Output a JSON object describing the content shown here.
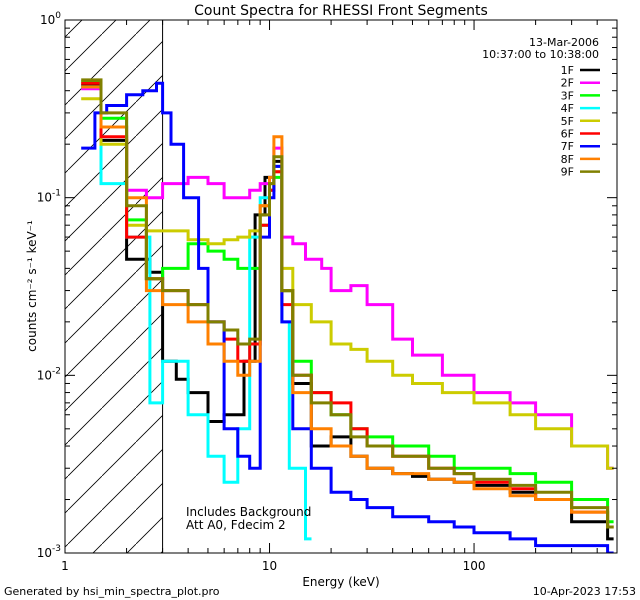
{
  "chart_data": {
    "type": "line",
    "title": "Count Spectra for RHESSI Front Segments",
    "xlabel": "Energy (keV)",
    "ylabel": "counts cm⁻² s⁻¹ keV⁻¹",
    "xscale": "log",
    "yscale": "log",
    "xlim": [
      1,
      500
    ],
    "ylim": [
      0.001,
      1
    ],
    "x_ticks": [
      {
        "value": 1,
        "label": "1"
      },
      {
        "value": 10,
        "label": "10"
      },
      {
        "value": 100,
        "label": "100"
      }
    ],
    "y_ticks": [
      {
        "value": 1,
        "base": "10",
        "exp": "0"
      },
      {
        "value": 0.1,
        "base": "10",
        "exp": "-1"
      },
      {
        "value": 0.01,
        "base": "10",
        "exp": "-2"
      },
      {
        "value": 0.001,
        "base": "10",
        "exp": "-3"
      }
    ],
    "date": "13-Mar-2006",
    "time_range": "10:37:00 to 10:38:00",
    "annotations": [
      "Includes Background",
      "Att A0, Fdecim 2"
    ],
    "hatched_region_below_keV": 3,
    "legend_position": "top-right",
    "series": [
      {
        "name": "1F",
        "color": "#000000",
        "x": [
          1.2,
          1.5,
          2.0,
          2.6,
          3.0,
          3.5,
          4.0,
          5.0,
          6.0,
          7.5,
          8.5,
          9.5,
          10.5,
          11.5,
          13,
          16,
          20,
          25,
          30,
          40,
          50,
          60,
          80,
          100,
          150,
          200,
          300,
          450
        ],
        "y": [
          0.43,
          0.21,
          0.045,
          0.038,
          0.012,
          0.0095,
          0.008,
          0.0055,
          0.006,
          0.012,
          0.08,
          0.13,
          0.16,
          0.03,
          0.009,
          0.004,
          0.0045,
          0.0035,
          0.003,
          0.0028,
          0.0027,
          0.0026,
          0.0025,
          0.0024,
          0.0022,
          0.002,
          0.0015,
          0.0012
        ]
      },
      {
        "name": "2F",
        "color": "#ff00ff",
        "x": [
          1.2,
          1.5,
          2.0,
          2.5,
          3.0,
          4.0,
          5.0,
          6.0,
          7.0,
          8.0,
          9.0,
          10.0,
          10.5,
          11.5,
          13,
          15,
          18,
          20,
          25,
          30,
          40,
          50,
          70,
          100,
          150,
          200,
          300,
          450
        ],
        "y": [
          0.41,
          0.25,
          0.11,
          0.1,
          0.12,
          0.13,
          0.12,
          0.1,
          0.1,
          0.11,
          0.12,
          0.13,
          0.19,
          0.06,
          0.055,
          0.045,
          0.04,
          0.03,
          0.032,
          0.025,
          0.016,
          0.013,
          0.01,
          0.008,
          0.007,
          0.006,
          0.004,
          0.003
        ]
      },
      {
        "name": "3F",
        "color": "#00ff00",
        "x": [
          1.2,
          1.5,
          2.0,
          2.5,
          3.0,
          4.0,
          5.0,
          6.0,
          7.0,
          8.0,
          9.0,
          10.0,
          10.5,
          11.5,
          13,
          16,
          20,
          25,
          30,
          40,
          60,
          80,
          100,
          150,
          200,
          300,
          450
        ],
        "y": [
          0.45,
          0.28,
          0.075,
          0.035,
          0.04,
          0.055,
          0.05,
          0.045,
          0.04,
          0.04,
          0.07,
          0.11,
          0.13,
          0.03,
          0.012,
          0.008,
          0.006,
          0.005,
          0.0045,
          0.004,
          0.0035,
          0.003,
          0.003,
          0.0028,
          0.0025,
          0.002,
          0.0015
        ]
      },
      {
        "name": "4F",
        "color": "#00ffff",
        "x": [
          1.2,
          1.5,
          2.0,
          2.6,
          3.0,
          4.0,
          5.0,
          6.0,
          7.0,
          8.0,
          9.0,
          10.0,
          10.5,
          11.5,
          12.5,
          15
        ],
        "y": [
          0.42,
          0.12,
          0.06,
          0.007,
          0.012,
          0.006,
          0.0035,
          0.0025,
          0.005,
          0.06,
          0.1,
          0.13,
          0.15,
          0.02,
          0.003,
          0.0012
        ]
      },
      {
        "name": "5F",
        "color": "#cccc00",
        "x": [
          1.2,
          1.5,
          2.0,
          2.5,
          3.0,
          4.0,
          5.0,
          6.0,
          7.0,
          8.0,
          9.0,
          10.0,
          10.5,
          11.5,
          13,
          16,
          20,
          25,
          30,
          40,
          50,
          70,
          100,
          150,
          200,
          300,
          450
        ],
        "y": [
          0.36,
          0.2,
          0.07,
          0.065,
          0.065,
          0.058,
          0.055,
          0.058,
          0.06,
          0.065,
          0.09,
          0.12,
          0.14,
          0.04,
          0.025,
          0.02,
          0.015,
          0.014,
          0.012,
          0.01,
          0.009,
          0.008,
          0.007,
          0.006,
          0.005,
          0.004,
          0.003
        ]
      },
      {
        "name": "6F",
        "color": "#ff0000",
        "x": [
          1.2,
          1.5,
          2.0,
          2.5,
          3.0,
          4.0,
          5.0,
          6.0,
          7.0,
          8.0,
          9.0,
          10.0,
          10.5,
          11.5,
          13,
          16,
          20,
          25,
          30,
          40,
          60,
          80,
          100,
          150,
          200,
          300,
          450
        ],
        "y": [
          0.44,
          0.22,
          0.06,
          0.035,
          0.03,
          0.025,
          0.02,
          0.016,
          0.012,
          0.015,
          0.07,
          0.11,
          0.14,
          0.025,
          0.01,
          0.008,
          0.007,
          0.005,
          0.004,
          0.0035,
          0.003,
          0.0028,
          0.0025,
          0.0023,
          0.002,
          0.0017,
          0.0014
        ]
      },
      {
        "name": "7F",
        "color": "#0000ff",
        "x": [
          1.2,
          1.4,
          1.6,
          2.0,
          2.4,
          2.8,
          3.0,
          3.3,
          3.8,
          4.5,
          5.0,
          6.0,
          7.0,
          8.0,
          9.0,
          10.0,
          10.5,
          11.5,
          13,
          16,
          20,
          25,
          30,
          40,
          60,
          80,
          100,
          150,
          200,
          300,
          450
        ],
        "y": [
          0.19,
          0.3,
          0.33,
          0.38,
          0.4,
          0.44,
          0.3,
          0.2,
          0.1,
          0.04,
          0.02,
          0.005,
          0.0035,
          0.003,
          0.06,
          0.1,
          0.15,
          0.02,
          0.005,
          0.003,
          0.0022,
          0.002,
          0.0018,
          0.0016,
          0.0015,
          0.0014,
          0.0013,
          0.0012,
          0.0011,
          0.0011,
          0.001
        ]
      },
      {
        "name": "8F",
        "color": "#ff8000",
        "x": [
          1.2,
          1.5,
          2.0,
          2.5,
          3.0,
          4.0,
          5.0,
          6.0,
          7.0,
          8.0,
          9.0,
          10.0,
          10.5,
          11.5,
          13,
          16,
          20,
          25,
          30,
          40,
          60,
          80,
          100,
          150,
          200,
          300,
          450
        ],
        "y": [
          0.42,
          0.25,
          0.1,
          0.03,
          0.025,
          0.02,
          0.015,
          0.012,
          0.01,
          0.012,
          0.09,
          0.13,
          0.22,
          0.03,
          0.008,
          0.005,
          0.004,
          0.0035,
          0.003,
          0.0028,
          0.0026,
          0.0025,
          0.0023,
          0.0021,
          0.002,
          0.0017,
          0.0014
        ]
      },
      {
        "name": "9F",
        "color": "#808000",
        "x": [
          1.2,
          1.5,
          2.0,
          2.5,
          3.0,
          4.0,
          5.0,
          6.0,
          7.0,
          8.0,
          9.0,
          10.0,
          10.5,
          11.5,
          13,
          16,
          20,
          25,
          30,
          40,
          60,
          80,
          100,
          150,
          200,
          300,
          450
        ],
        "y": [
          0.46,
          0.3,
          0.09,
          0.035,
          0.03,
          0.025,
          0.02,
          0.018,
          0.015,
          0.016,
          0.08,
          0.12,
          0.17,
          0.03,
          0.01,
          0.007,
          0.006,
          0.0045,
          0.004,
          0.0035,
          0.003,
          0.0028,
          0.0026,
          0.0024,
          0.0022,
          0.0018,
          0.0014
        ]
      }
    ]
  },
  "footer": {
    "generated_by": "Generated by hsi_min_spectra_plot.pro",
    "timestamp": "10-Apr-2023 17:53"
  }
}
